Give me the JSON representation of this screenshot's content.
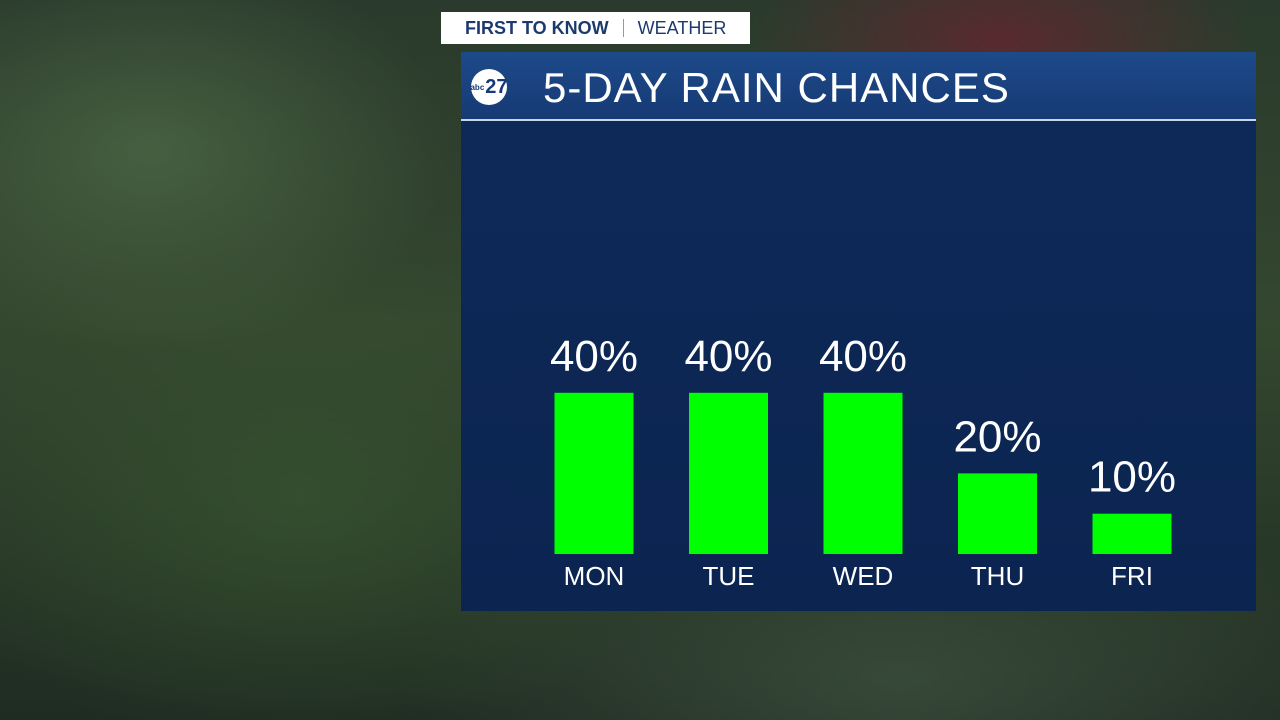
{
  "header": {
    "tag": "FIRST TO KNOW",
    "section": "WEATHER"
  },
  "logo": {
    "network": "abc",
    "channel": "27"
  },
  "chart_data": {
    "type": "bar",
    "title": "5-DAY RAIN CHANCES",
    "categories": [
      "MON",
      "TUE",
      "WED",
      "THU",
      "FRI"
    ],
    "values": [
      40,
      40,
      40,
      20,
      10
    ],
    "value_labels": [
      "40%",
      "40%",
      "40%",
      "20%",
      "10%"
    ],
    "color": "#00ff00"
  }
}
